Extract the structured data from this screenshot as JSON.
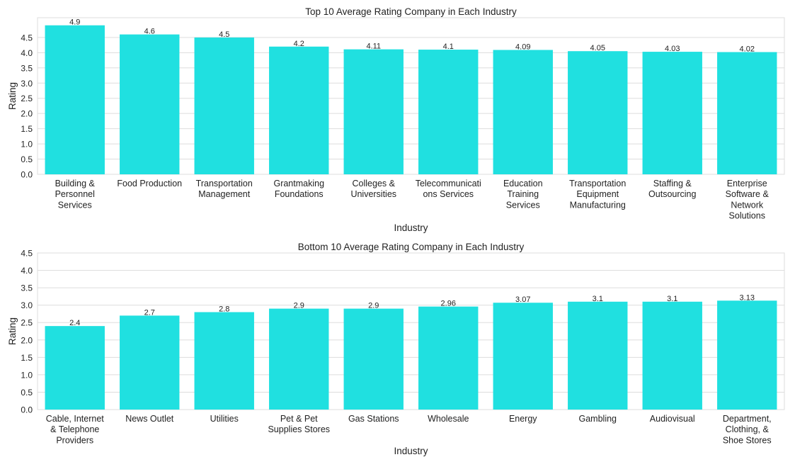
{
  "colors": {
    "bar": "#20e0e0",
    "grid": "#dddddd",
    "frame": "#dddddd",
    "text": "#222222"
  },
  "chart_data": [
    {
      "type": "bar",
      "title": "Top 10 Average Rating Company in Each Industry",
      "xlabel": "Industry",
      "ylabel": "Rating",
      "ylim": [
        0,
        5.15
      ],
      "yticks": [
        "0.0",
        "0.5",
        "1.0",
        "1.5",
        "2.0",
        "2.5",
        "3.0",
        "3.5",
        "4.0",
        "4.5"
      ],
      "grid": true,
      "categories": [
        [
          "Building &",
          "Personnel",
          "Services"
        ],
        [
          "Food Production"
        ],
        [
          "Transportation",
          "Management"
        ],
        [
          "Grantmaking",
          "Foundations"
        ],
        [
          "Colleges &",
          "Universities"
        ],
        [
          "Telecommunicati",
          "ons Services"
        ],
        [
          "Education",
          "Training",
          "Services"
        ],
        [
          "Transportation",
          "Equipment",
          "Manufacturing"
        ],
        [
          "Staffing &",
          "Outsourcing"
        ],
        [
          "Enterprise",
          "Software &",
          "Network",
          "Solutions"
        ]
      ],
      "values": [
        4.9,
        4.6,
        4.5,
        4.2,
        4.11,
        4.1,
        4.09,
        4.05,
        4.03,
        4.02
      ],
      "data_labels": [
        "4.9",
        "4.6",
        "4.5",
        "4.2",
        "4.11",
        "4.1",
        "4.09",
        "4.05",
        "4.03",
        "4.02"
      ]
    },
    {
      "type": "bar",
      "title": "Bottom 10 Average Rating Company in Each Industry",
      "xlabel": "Industry",
      "ylabel": "Rating",
      "ylim": [
        0,
        4.5
      ],
      "yticks": [
        "0.0",
        "0.5",
        "1.0",
        "1.5",
        "2.0",
        "2.5",
        "3.0",
        "3.5",
        "4.0",
        "4.5"
      ],
      "grid": true,
      "categories": [
        [
          "Cable, Internet",
          "& Telephone",
          "Providers"
        ],
        [
          "News Outlet"
        ],
        [
          "Utilities"
        ],
        [
          "Pet & Pet",
          "Supplies Stores"
        ],
        [
          "Gas Stations"
        ],
        [
          "Wholesale"
        ],
        [
          "Energy"
        ],
        [
          "Gambling"
        ],
        [
          "Audiovisual"
        ],
        [
          "Department,",
          "Clothing, &",
          "Shoe Stores"
        ]
      ],
      "values": [
        2.4,
        2.7,
        2.8,
        2.9,
        2.9,
        2.96,
        3.07,
        3.1,
        3.1,
        3.13
      ],
      "data_labels": [
        "2.4",
        "2.7",
        "2.8",
        "2.9",
        "2.9",
        "2.96",
        "3.07",
        "3.1",
        "3.1",
        "3.13"
      ]
    }
  ]
}
